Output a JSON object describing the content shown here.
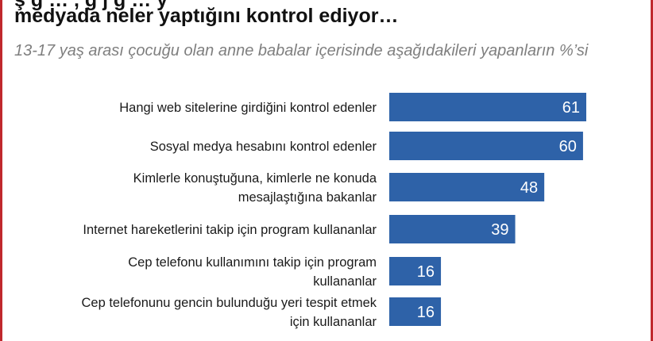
{
  "title_cut": "ş g … , g j g … y",
  "title": "medyada neler yaptığını kontrol ediyor…",
  "subtitle": "13-17 yaş arası çocuğu olan anne babalar içerisinde aşağıdakileri yapanların %’si",
  "colors": {
    "bar": "#2e62a8",
    "frame": "#c0282d"
  },
  "chart_data": {
    "type": "bar",
    "orientation": "horizontal",
    "categories": [
      [
        "Hangi web sitelerine girdiğini kontrol edenler"
      ],
      [
        "Sosyal medya hesabını kontrol edenler"
      ],
      [
        "Kimlerle konuştuğuna, kimlerle ne konuda",
        "mesajlaştığına bakanlar"
      ],
      [
        "Internet hareketlerini  takip için program kullananlar"
      ],
      [
        "Cep telefonu kullanımını takip için program",
        "kullananlar"
      ],
      [
        "Cep telefonunu gencin bulunduğu yeri tespit etmek",
        "için kullananlar"
      ]
    ],
    "values": [
      61,
      60,
      48,
      39,
      16,
      16
    ],
    "xlim": [
      0,
      61
    ],
    "grid": false,
    "data_labels": true
  }
}
